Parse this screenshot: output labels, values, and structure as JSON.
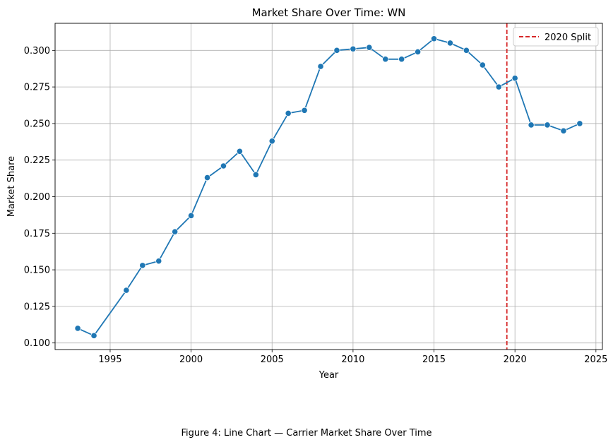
{
  "chart_data": {
    "type": "line",
    "title": "Market Share Over Time: WN",
    "xlabel": "Year",
    "ylabel": "Market Share",
    "xlim": [
      1991.6,
      2025.4
    ],
    "ylim": [
      0.0955,
      0.3185
    ],
    "xticks": [
      1995,
      2000,
      2005,
      2010,
      2015,
      2020,
      2025
    ],
    "yticks": [
      0.1,
      0.125,
      0.15,
      0.175,
      0.2,
      0.225,
      0.25,
      0.275,
      0.3
    ],
    "grid": true,
    "legend_position": "top-right",
    "series": [
      {
        "color": "#1f77b4",
        "marker": "circle",
        "points": [
          {
            "x": 1993,
            "y": 0.11
          },
          {
            "x": 1994,
            "y": 0.105
          },
          {
            "x": 1996,
            "y": 0.136
          },
          {
            "x": 1997,
            "y": 0.153
          },
          {
            "x": 1998,
            "y": 0.156
          },
          {
            "x": 1999,
            "y": 0.176
          },
          {
            "x": 2000,
            "y": 0.187
          },
          {
            "x": 2001,
            "y": 0.213
          },
          {
            "x": 2002,
            "y": 0.221
          },
          {
            "x": 2003,
            "y": 0.231
          },
          {
            "x": 2004,
            "y": 0.215
          },
          {
            "x": 2005,
            "y": 0.238
          },
          {
            "x": 2006,
            "y": 0.257
          },
          {
            "x": 2007,
            "y": 0.259
          },
          {
            "x": 2008,
            "y": 0.289
          },
          {
            "x": 2009,
            "y": 0.3
          },
          {
            "x": 2010,
            "y": 0.301
          },
          {
            "x": 2011,
            "y": 0.302
          },
          {
            "x": 2012,
            "y": 0.294
          },
          {
            "x": 2013,
            "y": 0.294
          },
          {
            "x": 2014,
            "y": 0.299
          },
          {
            "x": 2015,
            "y": 0.308
          },
          {
            "x": 2016,
            "y": 0.305
          },
          {
            "x": 2017,
            "y": 0.3
          },
          {
            "x": 2018,
            "y": 0.29
          },
          {
            "x": 2019,
            "y": 0.275
          },
          {
            "x": 2020,
            "y": 0.281
          },
          {
            "x": 2021,
            "y": 0.249
          },
          {
            "x": 2022,
            "y": 0.249
          },
          {
            "x": 2023,
            "y": 0.245
          },
          {
            "x": 2024,
            "y": 0.25
          }
        ]
      }
    ],
    "reference_line": {
      "name": "2020 Split",
      "orientation": "vertical",
      "x": 2019.5,
      "color": "#d62728",
      "style": "dashed"
    }
  },
  "caption": "Figure 4: Line Chart — Carrier Market Share Over Time"
}
